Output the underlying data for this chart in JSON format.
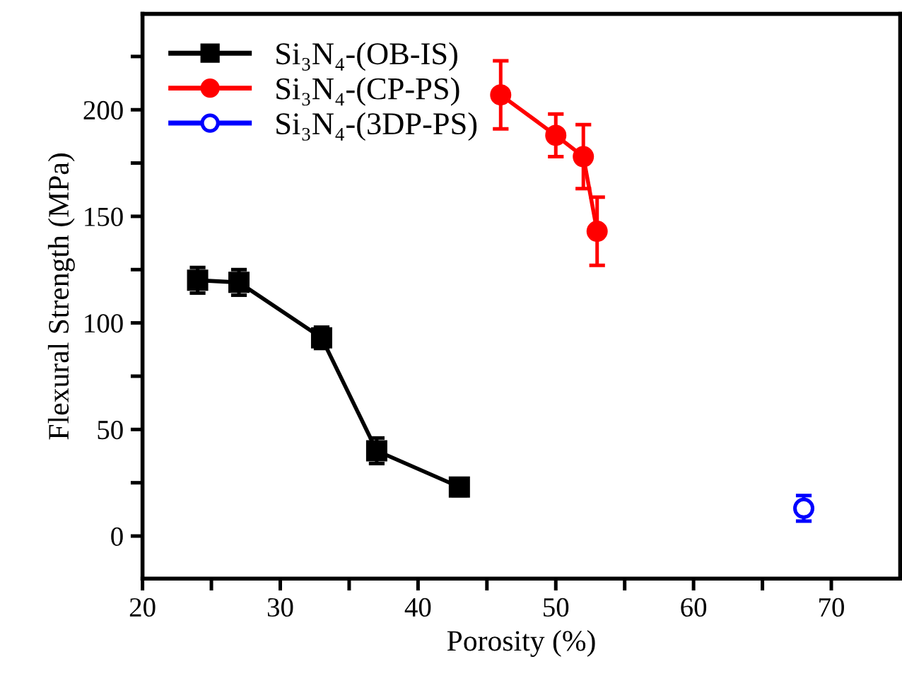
{
  "chart_data": {
    "type": "line",
    "xlabel": "Porosity (%)",
    "ylabel": "Flexural Strength (MPa)",
    "series": [
      {
        "name": "Si₃N₄-(OB-IS)",
        "color": "#000000",
        "marker": "square",
        "x": [
          24,
          27,
          33,
          37,
          43
        ],
        "values": [
          120,
          119,
          93,
          40,
          23
        ],
        "errors": [
          6,
          6,
          5,
          6,
          4
        ]
      },
      {
        "name": "Si₃N₄-(CP-PS)",
        "color": "#ff0000",
        "marker": "circle",
        "x": [
          46,
          50,
          52,
          53
        ],
        "values": [
          207,
          188,
          178,
          143
        ],
        "errors": [
          16,
          10,
          15,
          16
        ]
      },
      {
        "name": "Si₃N₄-(3DP-PS)",
        "color": "#0000ff",
        "type": "scatter",
        "marker": "circle",
        "x": [
          68
        ],
        "values": [
          13
        ],
        "errors": [
          6
        ]
      }
    ],
    "xlim": [
      20,
      75
    ],
    "ylim": [
      -20,
      245
    ],
    "xticks": [
      20,
      {
        "value": 25,
        "label": null
      },
      30,
      {
        "value": 35,
        "label": null
      },
      40,
      {
        "value": 45,
        "label": null
      },
      50,
      {
        "value": 55,
        "label": null
      },
      60,
      {
        "value": 65,
        "label": null
      },
      70
    ],
    "yticks": [
      0,
      {
        "value": 25,
        "label": null
      },
      50,
      {
        "value": 75,
        "label": null
      },
      100,
      {
        "value": 125,
        "label": null
      },
      150,
      {
        "value": 175,
        "label": null
      },
      200,
      {
        "value": 225,
        "label": null
      }
    ],
    "grid": false,
    "legend": "top left",
    "line_style": "solid"
  }
}
